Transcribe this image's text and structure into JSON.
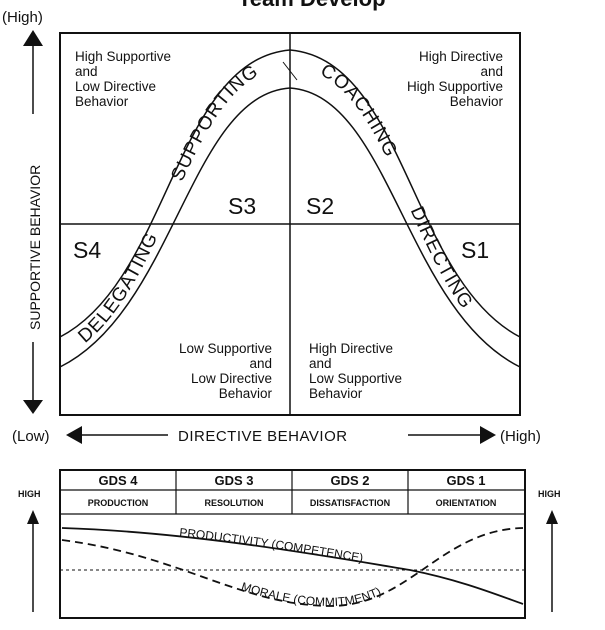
{
  "top_title": "Team Develop",
  "axes": {
    "y_high": "(High)",
    "y_title": "SUPPORTIVE BEHAVIOR",
    "x_low": "(Low)",
    "x_title": "DIRECTIVE BEHAVIOR",
    "x_high": "(High)"
  },
  "quadrants": {
    "top_left": [
      "High Supportive",
      "and",
      "Low Directive",
      "Behavior"
    ],
    "top_right": [
      "High Directive",
      "and",
      "High Supportive",
      "Behavior"
    ],
    "bottom_left": [
      "Low Supportive",
      "and",
      "Low Directive",
      "Behavior"
    ],
    "bottom_right": [
      "High Directive",
      "and",
      "Low Supportive",
      "Behavior"
    ]
  },
  "styles": {
    "s1": "S1",
    "s2": "S2",
    "s3": "S3",
    "s4": "S4"
  },
  "curve_labels": {
    "delegating": "DELEGATING",
    "supporting": "SUPPORTING",
    "coaching": "COACHING",
    "directing": "DIRECTING"
  },
  "stages": [
    {
      "gds": "GDS 4",
      "name": "PRODUCTION"
    },
    {
      "gds": "GDS 3",
      "name": "RESOLUTION"
    },
    {
      "gds": "GDS 2",
      "name": "DISSATISFACTION"
    },
    {
      "gds": "GDS 1",
      "name": "ORIENTATION"
    }
  ],
  "lower_chart": {
    "high_left": "HIGH",
    "high_right": "HIGH",
    "productivity": "PRODUCTIVITY (COMPETENCE)",
    "morale": "MORALE (COMMITMENT)"
  }
}
